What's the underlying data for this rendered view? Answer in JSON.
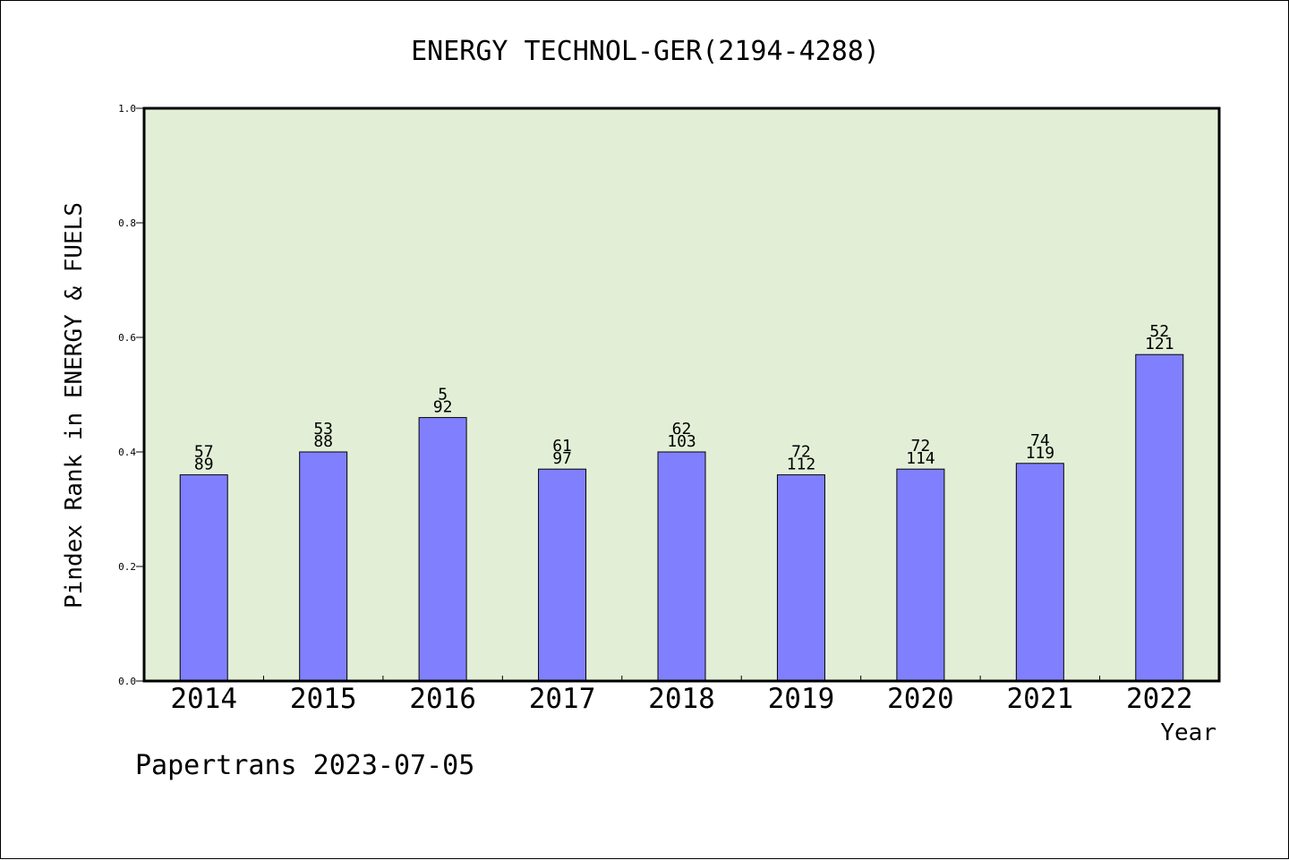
{
  "chart_data": {
    "type": "bar",
    "title": "ENERGY TECHNOL-GER(2194-4288)",
    "xlabel": "Year",
    "ylabel": "Pindex Rank in ENERGY & FUELS",
    "ylim": [
      0,
      1.0
    ],
    "yticks": [
      "0.0",
      "0.2",
      "0.4",
      "0.6",
      "0.8",
      "1.0"
    ],
    "grid": false,
    "categories": [
      "2014",
      "2015",
      "2016",
      "2017",
      "2018",
      "2019",
      "2020",
      "2021",
      "2022"
    ],
    "values": [
      0.36,
      0.4,
      0.46,
      0.37,
      0.4,
      0.36,
      0.37,
      0.38,
      0.57
    ],
    "bar_labels_top": [
      "57",
      "53",
      "5",
      "61",
      "62",
      "72",
      "72",
      "74",
      "52"
    ],
    "bar_labels_bottom": [
      "89",
      "88",
      "92",
      "97",
      "103",
      "112",
      "114",
      "119",
      "121"
    ],
    "colors": {
      "bar": "#8080ff",
      "plot_background": "#e2efd6"
    }
  },
  "footer": "Papertrans 2023-07-05"
}
